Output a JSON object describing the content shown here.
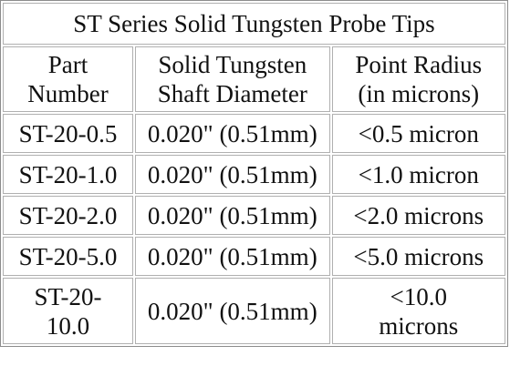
{
  "table": {
    "title": "ST Series Solid Tungsten Probe Tips",
    "header": [
      [
        "Part",
        "Number"
      ],
      [
        "Solid Tungsten",
        "Shaft Diameter"
      ],
      [
        "Point Radius",
        "(in microns)"
      ]
    ],
    "rows": [
      [
        "ST-20-0.5",
        "0.020\" (0.51mm)",
        "<0.5 micron"
      ],
      [
        "ST-20-1.0",
        "0.020\" (0.51mm)",
        "<1.0 micron"
      ],
      [
        "ST-20-2.0",
        "0.020\" (0.51mm)",
        "<2.0 microns"
      ],
      [
        "ST-20-5.0",
        "0.020\" (0.51mm)",
        "<5.0 microns"
      ],
      [
        [
          "ST-20-",
          "10.0"
        ],
        "0.020\" (0.51mm)",
        [
          "<10.0",
          "microns"
        ]
      ]
    ]
  }
}
